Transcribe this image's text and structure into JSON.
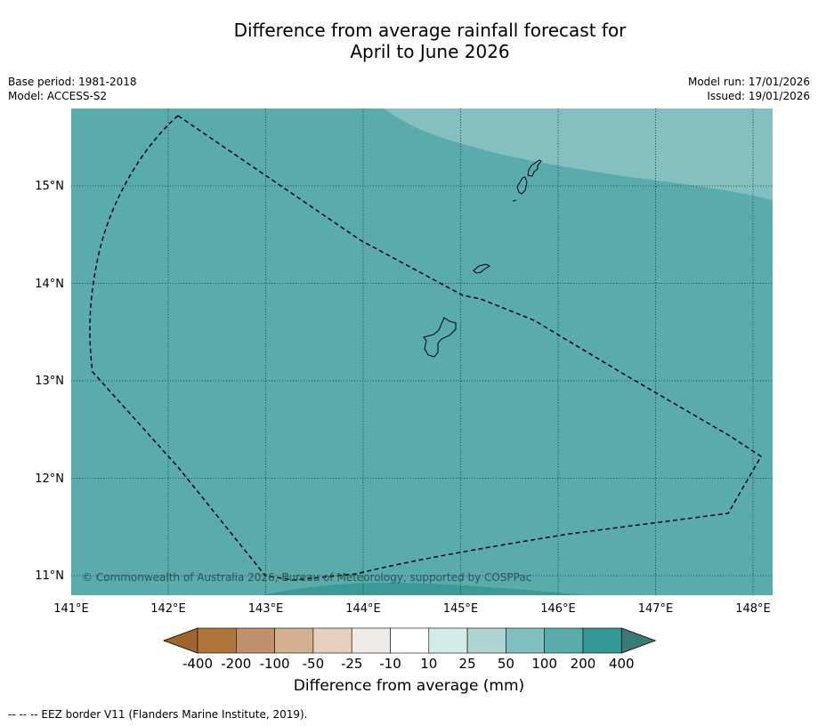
{
  "header": {
    "title_line1": "Difference from average rainfall forecast for",
    "title_line2": "April to June 2026",
    "base_period": "Base period: 1981-2018",
    "model": "Model: ACCESS-S2",
    "model_run": "Model run: 17/01/2026",
    "issued": "Issued: 19/01/2026"
  },
  "map": {
    "lon_ticks": [
      "141°E",
      "142°E",
      "143°E",
      "144°E",
      "145°E",
      "146°E",
      "147°E",
      "148°E"
    ],
    "lat_ticks": [
      "15°N",
      "14°N",
      "13°N",
      "12°N",
      "11°N"
    ],
    "copyright": "© Commonwealth of Australia 2026, Bureau of Meteorology, supported by COSPPac",
    "colors": {
      "base": "#5aabab",
      "light_band": "#85c0c0",
      "dark_band": "#3a9a98",
      "border": "#000000"
    }
  },
  "colorbar": {
    "labels": [
      "-400",
      "-200",
      "-100",
      "-50",
      "-25",
      "-10",
      "10",
      "25",
      "50",
      "100",
      "200",
      "400"
    ],
    "colors": [
      "#a0642e",
      "#b0773d",
      "#c0906a",
      "#d3b090",
      "#e6cfbd",
      "#f0ebe7",
      "#ffffff",
      "#d3ebe9",
      "#aed5d3",
      "#82c0bf",
      "#5aabab",
      "#339998",
      "#3a7a78"
    ],
    "title": "Difference from average (mm)"
  },
  "footnote": "--  --  -- EEZ border V11 (Flanders Marine Institute, 2019)."
}
